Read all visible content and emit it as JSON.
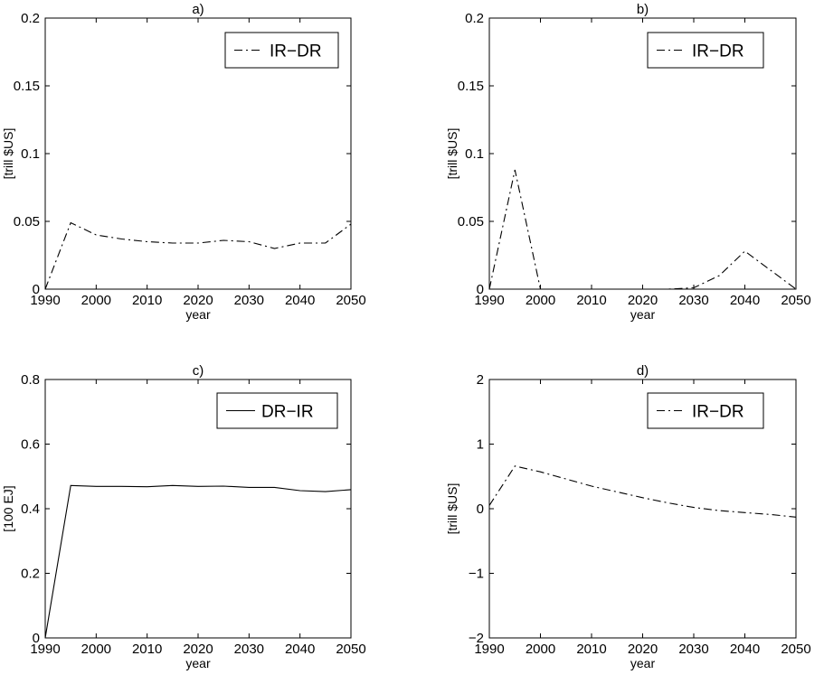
{
  "chart_data": [
    {
      "type": "line",
      "title": "a)",
      "xlabel": "year",
      "ylabel": "[trill $US]",
      "xlim": [
        1990,
        2050
      ],
      "ylim": [
        0,
        0.2
      ],
      "xticks": [
        1990,
        2000,
        2010,
        2020,
        2030,
        2040,
        2050
      ],
      "xtick_labels": [
        "1990",
        "2000",
        "2010",
        "2020",
        "2030",
        "2040",
        "2050"
      ],
      "yticks": [
        0,
        0.05,
        0.1,
        0.15,
        0.2
      ],
      "ytick_labels": [
        "0",
        "0.05",
        "0.1",
        "0.15",
        "0.2"
      ],
      "grid": false,
      "legend": "top-right",
      "series": [
        {
          "name": "IR−DR",
          "style": "dashdot",
          "color": "#000000",
          "x": [
            1990,
            1995,
            2000,
            2005,
            2010,
            2015,
            2020,
            2025,
            2030,
            2035,
            2040,
            2045,
            2050
          ],
          "y": [
            0.0,
            0.049,
            0.04,
            0.037,
            0.035,
            0.034,
            0.034,
            0.036,
            0.035,
            0.03,
            0.034,
            0.034,
            0.048
          ]
        }
      ]
    },
    {
      "type": "line",
      "title": "b)",
      "xlabel": "year",
      "ylabel": "[trill $US]",
      "xlim": [
        1990,
        2050
      ],
      "ylim": [
        0,
        0.2
      ],
      "xticks": [
        1990,
        2000,
        2010,
        2020,
        2030,
        2040,
        2050
      ],
      "xtick_labels": [
        "1990",
        "2000",
        "2010",
        "2020",
        "2030",
        "2040",
        "2050"
      ],
      "yticks": [
        0,
        0.05,
        0.1,
        0.15,
        0.2
      ],
      "ytick_labels": [
        "0",
        "0.05",
        "0.1",
        "0.15",
        "0.2"
      ],
      "grid": false,
      "legend": "top-right",
      "series": [
        {
          "name": "IR−DR",
          "style": "dashdot",
          "color": "#000000",
          "x": [
            1990,
            1995,
            2000,
            2005,
            2010,
            2015,
            2020,
            2025,
            2030,
            2035,
            2040,
            2045,
            2050
          ],
          "y": [
            0.0,
            0.088,
            0.0,
            0.0,
            0.0,
            0.0,
            0.0,
            0.0,
            0.001,
            0.01,
            0.028,
            0.014,
            0.0
          ]
        }
      ]
    },
    {
      "type": "line",
      "title": "c)",
      "xlabel": "year",
      "ylabel": "[100 EJ]",
      "xlim": [
        1990,
        2050
      ],
      "ylim": [
        0,
        0.8
      ],
      "xticks": [
        1990,
        2000,
        2010,
        2020,
        2030,
        2040,
        2050
      ],
      "xtick_labels": [
        "1990",
        "2000",
        "2010",
        "2020",
        "2030",
        "2040",
        "2050"
      ],
      "yticks": [
        0,
        0.2,
        0.4,
        0.6,
        0.8
      ],
      "ytick_labels": [
        "0",
        "0.2",
        "0.4",
        "0.6",
        "0.8"
      ],
      "grid": false,
      "legend": "top-right",
      "series": [
        {
          "name": "DR−IR",
          "style": "solid",
          "color": "#000000",
          "x": [
            1990,
            1995,
            2000,
            2005,
            2010,
            2015,
            2020,
            2025,
            2030,
            2035,
            2040,
            2045,
            2050
          ],
          "y": [
            0.0,
            0.472,
            0.469,
            0.469,
            0.468,
            0.472,
            0.469,
            0.47,
            0.466,
            0.466,
            0.456,
            0.453,
            0.459
          ]
        }
      ]
    },
    {
      "type": "line",
      "title": "d)",
      "xlabel": "year",
      "ylabel": "[trill $US]",
      "xlim": [
        1990,
        2050
      ],
      "ylim": [
        -2,
        2
      ],
      "xticks": [
        1990,
        2000,
        2010,
        2020,
        2030,
        2040,
        2050
      ],
      "xtick_labels": [
        "1990",
        "2000",
        "2010",
        "2020",
        "2030",
        "2040",
        "2050"
      ],
      "yticks": [
        -2,
        -1,
        0,
        1,
        2
      ],
      "ytick_labels": [
        "−2",
        "−1",
        "0",
        "1",
        "2"
      ],
      "grid": false,
      "legend": "top-right",
      "series": [
        {
          "name": "IR−DR",
          "style": "dashdot",
          "color": "#000000",
          "x": [
            1990,
            1995,
            2000,
            2005,
            2010,
            2015,
            2020,
            2025,
            2030,
            2035,
            2040,
            2045,
            2050
          ],
          "y": [
            0.05,
            0.66,
            0.57,
            0.46,
            0.35,
            0.26,
            0.17,
            0.09,
            0.02,
            -0.03,
            -0.06,
            -0.09,
            -0.13
          ]
        }
      ]
    }
  ]
}
